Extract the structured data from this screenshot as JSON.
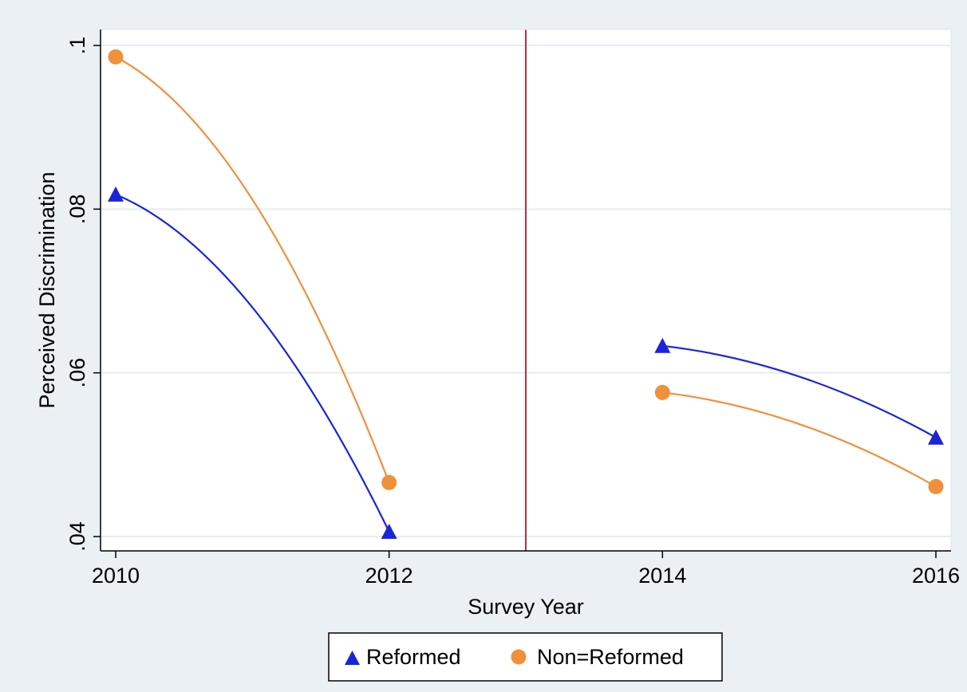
{
  "chart_data": {
    "type": "line",
    "title": "",
    "xlabel": "Survey Year",
    "ylabel": "Perceived Discrimination",
    "xlim": [
      2010,
      2016
    ],
    "ylim": [
      0.04,
      0.1
    ],
    "x_ticks": [
      2010,
      2012,
      2014,
      2016
    ],
    "x_tick_labels": [
      "2010",
      "2012",
      "2014",
      "2016"
    ],
    "y_ticks": [
      0.04,
      0.06,
      0.08,
      0.1
    ],
    "y_tick_labels": [
      ".04",
      ".06",
      ".08",
      ".1"
    ],
    "grid": "horizontal",
    "vertical_reference_line": {
      "x": 2013,
      "color": "#b5303d"
    },
    "legend_position": "bottom",
    "series": [
      {
        "name": "Reformed",
        "marker": "triangle",
        "color": "#1a25d8",
        "points": [
          {
            "x": 2010,
            "y": 0.0818
          },
          {
            "x": 2012,
            "y": 0.0406
          },
          {
            "x": 2014,
            "y": 0.0633
          },
          {
            "x": 2016,
            "y": 0.0521
          }
        ]
      },
      {
        "name": "Non=Reformed",
        "marker": "circle",
        "color": "#f0903a",
        "points": [
          {
            "x": 2010,
            "y": 0.0986
          },
          {
            "x": 2012,
            "y": 0.0466
          },
          {
            "x": 2014,
            "y": 0.0576
          },
          {
            "x": 2016,
            "y": 0.0461
          }
        ]
      }
    ],
    "fit_segments": [
      [
        2010,
        2012
      ],
      [
        2014,
        2016
      ]
    ]
  }
}
